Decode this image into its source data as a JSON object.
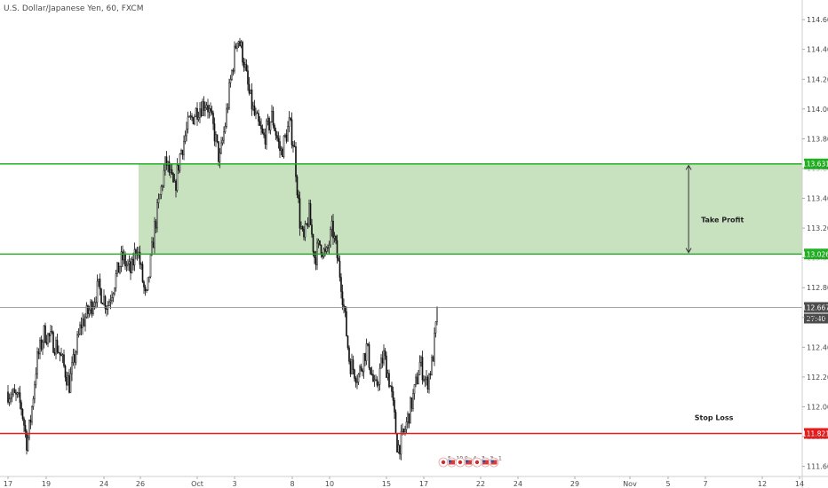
{
  "chart_data": {
    "type": "candlestick",
    "title": "U.S. Dollar/Japanese Yen, 60, FXCM",
    "ylim": [
      111.52,
      114.72
    ],
    "y_ticks": [
      111.6,
      111.8,
      112.0,
      112.2,
      112.4,
      112.6,
      112.8,
      113.0,
      113.2,
      113.4,
      113.6,
      113.8,
      114.0,
      114.2,
      114.4,
      114.6
    ],
    "y_tick_labels": [
      "111.600",
      "111.800",
      "112.000",
      "112.200",
      "112.400",
      "112.600",
      "112.800",
      "113.000",
      "113.200",
      "113.400",
      "113.600",
      "113.800",
      "114.000",
      "114.200",
      "114.400",
      "114.600"
    ],
    "x_ticks": [
      {
        "label": "17",
        "x": 0
      },
      {
        "label": "19",
        "x": 1
      },
      {
        "label": "24",
        "x": 2
      },
      {
        "label": "26",
        "x": 3
      },
      {
        "label": "Oct",
        "x": 4
      },
      {
        "label": "3",
        "x": 5
      },
      {
        "label": "8",
        "x": 6
      },
      {
        "label": "10",
        "x": 7
      },
      {
        "label": "15",
        "x": 8
      },
      {
        "label": "17",
        "x": 9
      },
      {
        "label": "22",
        "x": 10
      },
      {
        "label": "24",
        "x": 11
      },
      {
        "label": "29",
        "x": 12
      },
      {
        "label": "Nov",
        "x": 13
      },
      {
        "label": "5",
        "x": 14
      },
      {
        "label": "7",
        "x": 15
      },
      {
        "label": "12",
        "x": 16
      },
      {
        "label": "14",
        "x": 17
      }
    ],
    "price_path": [
      [
        0.0,
        112.1
      ],
      [
        0.25,
        112.05
      ],
      [
        0.35,
        112.0
      ],
      [
        0.5,
        111.75
      ],
      [
        0.6,
        111.93
      ],
      [
        0.75,
        112.3
      ],
      [
        0.95,
        112.5
      ],
      [
        1.2,
        112.4
      ],
      [
        1.4,
        112.15
      ],
      [
        1.6,
        112.55
      ],
      [
        1.75,
        112.65
      ],
      [
        1.9,
        112.8
      ],
      [
        2.1,
        112.68
      ],
      [
        2.3,
        112.85
      ],
      [
        2.5,
        113.0
      ],
      [
        2.75,
        112.9
      ],
      [
        2.9,
        113.1
      ],
      [
        3.1,
        112.7
      ],
      [
        3.25,
        113.2
      ],
      [
        3.45,
        113.65
      ],
      [
        3.6,
        113.45
      ],
      [
        3.7,
        113.7
      ],
      [
        3.85,
        113.9
      ],
      [
        4.0,
        114.0
      ],
      [
        4.25,
        114.05
      ],
      [
        4.45,
        113.85
      ],
      [
        4.6,
        113.65
      ],
      [
        4.75,
        113.9
      ],
      [
        4.9,
        114.2
      ],
      [
        5.05,
        114.5
      ],
      [
        5.15,
        114.35
      ],
      [
        5.25,
        114.1
      ],
      [
        5.35,
        113.95
      ],
      [
        5.5,
        113.8
      ],
      [
        5.65,
        113.95
      ],
      [
        5.8,
        113.7
      ],
      [
        5.95,
        113.9
      ],
      [
        6.05,
        113.75
      ],
      [
        6.2,
        113.25
      ],
      [
        6.3,
        113.1
      ],
      [
        6.45,
        113.3
      ],
      [
        6.6,
        113.0
      ],
      [
        6.75,
        113.1
      ],
      [
        6.9,
        113.0
      ],
      [
        7.05,
        113.2
      ],
      [
        7.2,
        112.85
      ],
      [
        7.35,
        112.3
      ],
      [
        7.5,
        112.2
      ],
      [
        7.65,
        112.4
      ],
      [
        7.8,
        112.1
      ],
      [
        7.95,
        112.35
      ],
      [
        8.1,
        112.15
      ],
      [
        8.2,
        111.95
      ],
      [
        8.3,
        111.72
      ],
      [
        8.45,
        111.8
      ],
      [
        8.6,
        111.95
      ],
      [
        8.75,
        112.1
      ],
      [
        8.9,
        112.3
      ],
      [
        9.05,
        112.15
      ],
      [
        9.15,
        112.3
      ],
      [
        9.25,
        112.667
      ]
    ],
    "zone": {
      "upper": 113.631,
      "lower": 113.026,
      "x_start": 2.95,
      "x_end": 17.1
    },
    "lines": [
      {
        "name": "upper",
        "price": 113.631,
        "label": "113.631",
        "color": "#21b021"
      },
      {
        "name": "lower",
        "price": 113.026,
        "label": "113.026",
        "color": "#21b021"
      },
      {
        "name": "stop",
        "price": 111.821,
        "label": "111.821",
        "color": "#e51c1c"
      },
      {
        "name": "current",
        "price": 112.667,
        "label": "112.667",
        "color": "#888888"
      }
    ],
    "countdown": "27:40",
    "annotations": [
      {
        "text": "Take Profit",
        "x": 15.3,
        "price": 113.24
      },
      {
        "text": "Stop Loss",
        "x": 15.15,
        "price": 111.91
      }
    ],
    "profit_arrow": {
      "x": 14.55,
      "from": 113.036,
      "to": 113.621
    },
    "events": [
      {
        "flag": "JP",
        "value": "5"
      },
      {
        "flag": "US",
        "value": "10"
      },
      {
        "flag": "JP",
        "value": "9"
      },
      {
        "flag": "US",
        "value": "4"
      },
      {
        "flag": "JP",
        "value": "3"
      },
      {
        "flag": "US",
        "value": "3"
      },
      {
        "flag": "US",
        "value": "1"
      }
    ],
    "colors": {
      "zone_fill": "#c8e2bf",
      "zone_line": "#21b021",
      "stop_line": "#e51c1c",
      "price_line": "#888888",
      "price_badge": "#4d4d4d",
      "candles": "#111111",
      "axis_text": "#4a4a4a",
      "axis_line": "#cfcfcf"
    },
    "grid": false
  }
}
